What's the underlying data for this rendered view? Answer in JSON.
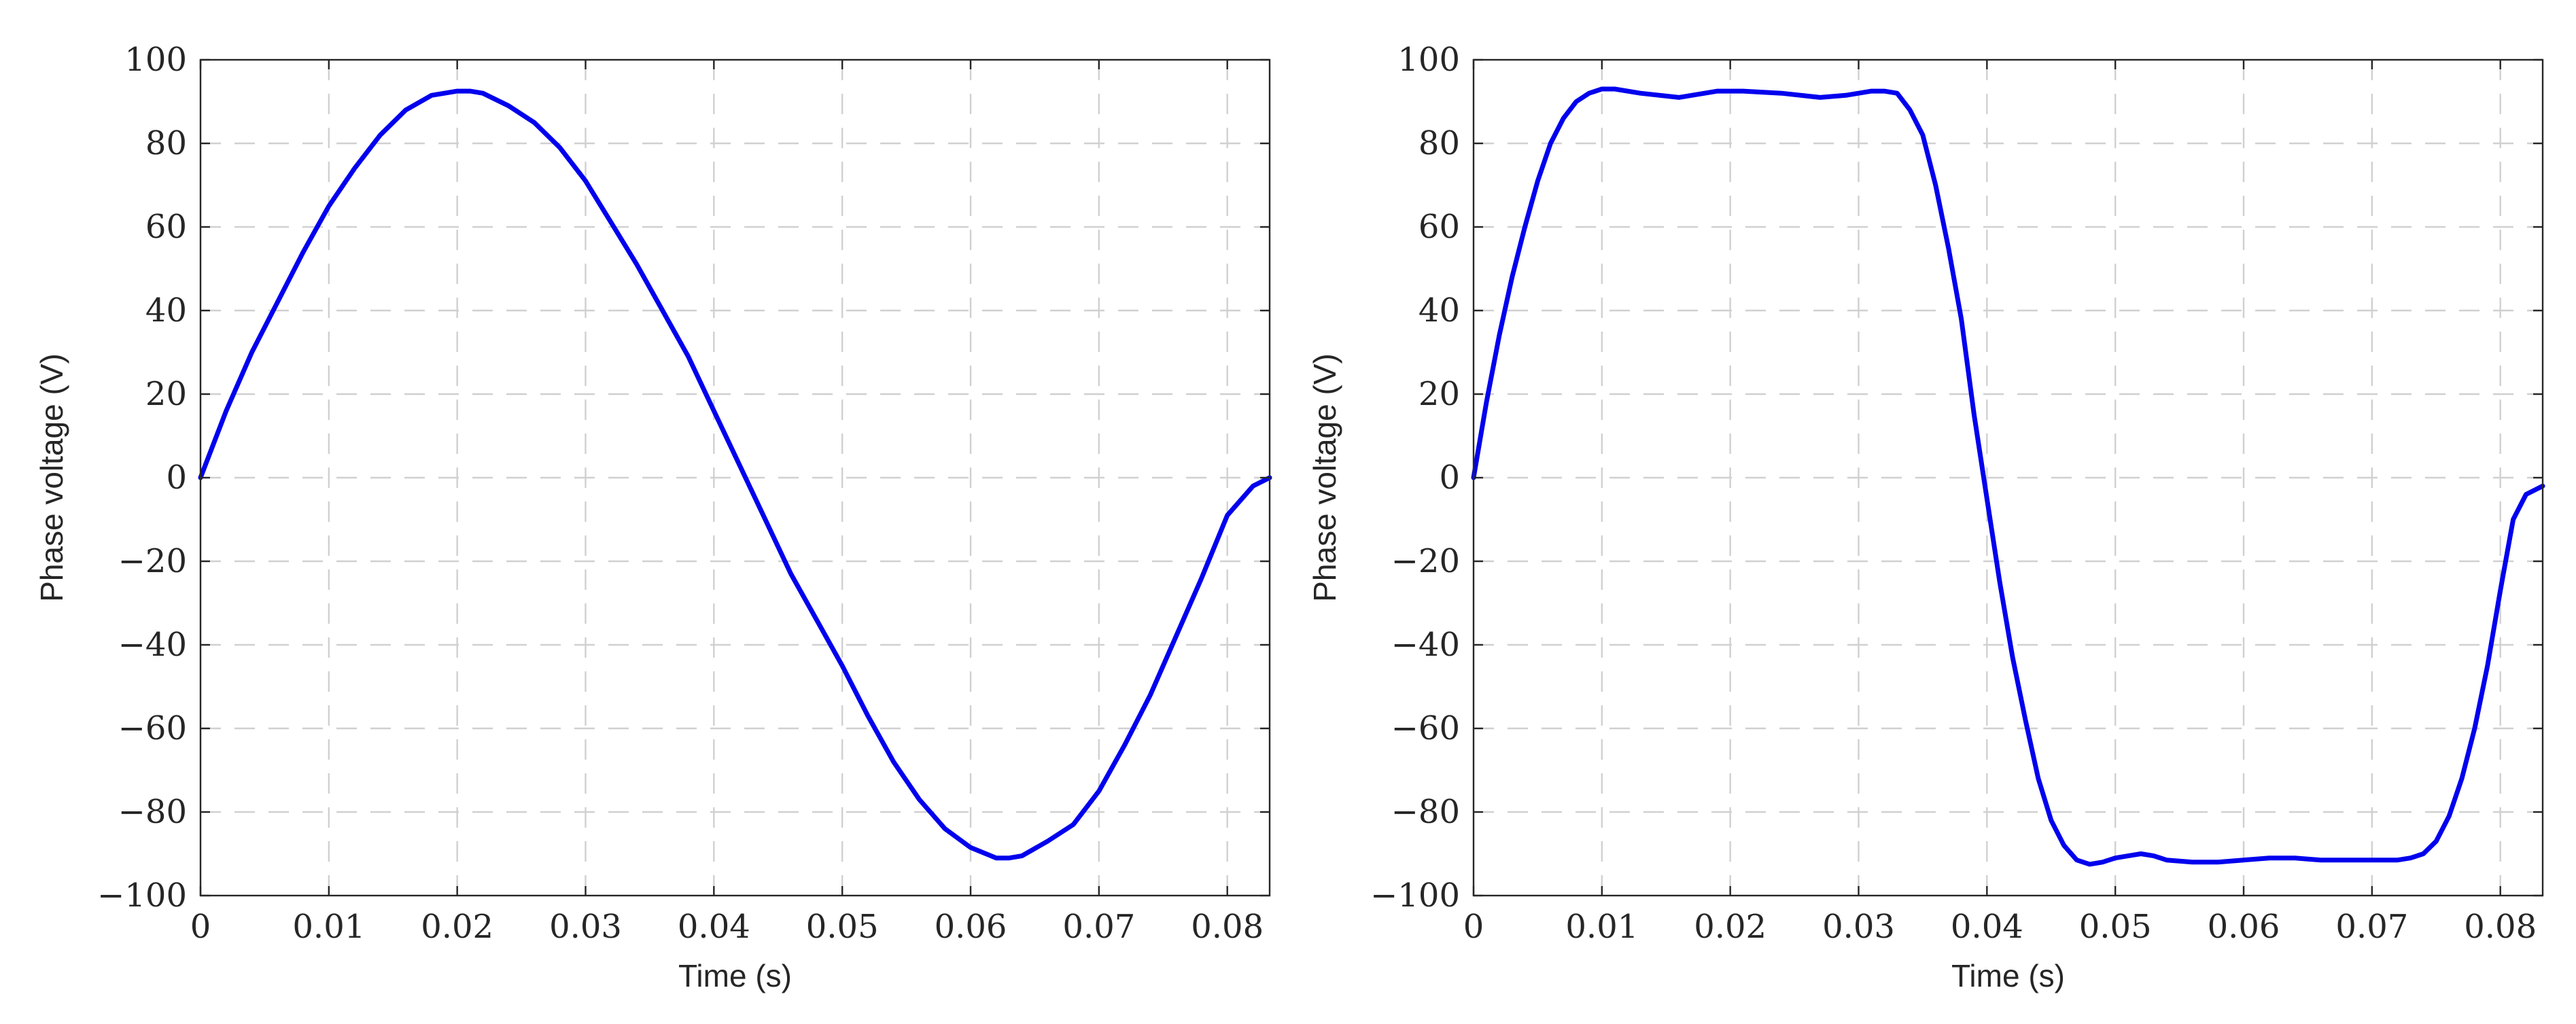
{
  "chart_data": [
    {
      "type": "line",
      "xlabel": "Time (s)",
      "ylabel": "Phase voltage (V)",
      "xlim": [
        0,
        0.0833
      ],
      "ylim": [
        -100,
        100
      ],
      "xticks": [
        0,
        0.01,
        0.02,
        0.03,
        0.04,
        0.05,
        0.06,
        0.07,
        0.08
      ],
      "xtick_labels": [
        "0",
        "0.01",
        "0.02",
        "0.03",
        "0.04",
        "0.05",
        "0.06",
        "0.07",
        "0.08"
      ],
      "yticks": [
        -100,
        -80,
        -60,
        -40,
        -20,
        0,
        20,
        40,
        60,
        80,
        100
      ],
      "ytick_labels": [
        "−100",
        "−80",
        "−60",
        "−40",
        "−20",
        "0",
        "20",
        "40",
        "60",
        "80",
        "100"
      ],
      "grid": true,
      "color": "#0000ee",
      "series": [
        {
          "x": [
            0,
            0.002,
            0.004,
            0.006,
            0.008,
            0.01,
            0.012,
            0.014,
            0.016,
            0.018,
            0.02,
            0.021,
            0.022,
            0.024,
            0.026,
            0.028,
            0.03,
            0.032,
            0.034,
            0.036,
            0.038,
            0.04,
            0.042,
            0.044,
            0.046,
            0.048,
            0.05,
            0.052,
            0.054,
            0.056,
            0.058,
            0.06,
            0.062,
            0.063,
            0.064,
            0.066,
            0.068,
            0.07,
            0.072,
            0.074,
            0.076,
            0.078,
            0.08,
            0.082,
            0.0833
          ],
          "y": [
            0,
            16,
            30,
            42,
            54,
            65,
            74,
            82,
            88,
            91.5,
            92.5,
            92.5,
            92,
            89,
            85,
            79,
            71,
            61,
            51,
            40,
            29,
            16,
            3,
            -10,
            -23,
            -34,
            -45,
            -57,
            -68,
            -77,
            -84,
            -88.5,
            -91,
            -91,
            -90.5,
            -87,
            -83,
            -75,
            -64,
            -52,
            -38,
            -24,
            -9,
            -2,
            0
          ]
        }
      ]
    },
    {
      "type": "line",
      "xlabel": "Time (s)",
      "ylabel": "Phase voltage (V)",
      "xlim": [
        0,
        0.0833
      ],
      "ylim": [
        -100,
        100
      ],
      "xticks": [
        0,
        0.01,
        0.02,
        0.03,
        0.04,
        0.05,
        0.06,
        0.07,
        0.08
      ],
      "xtick_labels": [
        "0",
        "0.01",
        "0.02",
        "0.03",
        "0.04",
        "0.05",
        "0.06",
        "0.07",
        "0.08"
      ],
      "yticks": [
        -100,
        -80,
        -60,
        -40,
        -20,
        0,
        20,
        40,
        60,
        80,
        100
      ],
      "ytick_labels": [
        "−100",
        "−80",
        "−60",
        "−40",
        "−20",
        "0",
        "20",
        "40",
        "60",
        "80",
        "100"
      ],
      "grid": true,
      "color": "#0000ee",
      "series": [
        {
          "x": [
            0,
            0.001,
            0.002,
            0.003,
            0.004,
            0.005,
            0.006,
            0.007,
            0.008,
            0.009,
            0.01,
            0.011,
            0.013,
            0.016,
            0.019,
            0.021,
            0.024,
            0.027,
            0.029,
            0.031,
            0.032,
            0.033,
            0.034,
            0.035,
            0.036,
            0.037,
            0.038,
            0.039,
            0.04,
            0.041,
            0.042,
            0.043,
            0.044,
            0.045,
            0.046,
            0.047,
            0.048,
            0.049,
            0.05,
            0.051,
            0.052,
            0.053,
            0.054,
            0.056,
            0.058,
            0.06,
            0.062,
            0.064,
            0.066,
            0.068,
            0.07,
            0.072,
            0.073,
            0.074,
            0.075,
            0.076,
            0.077,
            0.078,
            0.079,
            0.08,
            0.081,
            0.082,
            0.0833
          ],
          "y": [
            0,
            18,
            34,
            48,
            60,
            71,
            80,
            86,
            90,
            92,
            93,
            93,
            92,
            91,
            92.5,
            92.5,
            92,
            91,
            91.5,
            92.5,
            92.5,
            92,
            88,
            82,
            70,
            55,
            38,
            15,
            -5,
            -25,
            -43,
            -58,
            -72,
            -82,
            -88,
            -91.5,
            -92.5,
            -92,
            -91,
            -90.5,
            -90,
            -90.5,
            -91.5,
            -92,
            -92,
            -91.5,
            -91,
            -91,
            -91.5,
            -91.5,
            -91.5,
            -91.5,
            -91,
            -90,
            -87,
            -81,
            -72,
            -60,
            -45,
            -27,
            -10,
            -4,
            -2
          ]
        }
      ]
    }
  ]
}
